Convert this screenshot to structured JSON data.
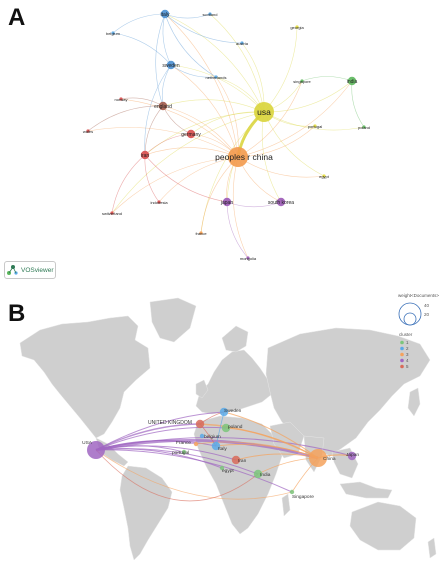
{
  "panel_a": {
    "letter": "A",
    "badge": "VOSviewer",
    "colors": {
      "green": "#5cb85c",
      "blue": "#5aa9e6",
      "yellow": "#e3dc3a",
      "purple": "#9b59b6",
      "red": "#d84b4b",
      "orange": "#f39a4c"
    },
    "nodes": [
      {
        "id": "usa",
        "label": "usa",
        "color": "#d9d43a",
        "size": "large"
      },
      {
        "id": "china",
        "label": "peoples r china",
        "color": "#f39a4c",
        "size": "large"
      },
      {
        "id": "italy",
        "label": "italy",
        "color": "#4a8fd1",
        "size": "small"
      },
      {
        "id": "scotland",
        "label": "scotland",
        "color": "#5aa9e6",
        "size": "tiny"
      },
      {
        "id": "georgia",
        "label": "georgia",
        "color": "#e3dc3a",
        "size": "tiny"
      },
      {
        "id": "belgium",
        "label": "belgium",
        "color": "#5aa9e6",
        "size": "tiny"
      },
      {
        "id": "austria",
        "label": "austria",
        "color": "#5aa9e6",
        "size": "tiny"
      },
      {
        "id": "sweden",
        "label": "sweden",
        "color": "#4a8fd1",
        "size": "small"
      },
      {
        "id": "netherlands",
        "label": "netherlands",
        "color": "#5aa9e6",
        "size": "tiny"
      },
      {
        "id": "singapore",
        "label": "singapore",
        "color": "#5cb85c",
        "size": "tiny"
      },
      {
        "id": "india",
        "label": "india",
        "color": "#5cb85c",
        "size": "small"
      },
      {
        "id": "norway",
        "label": "norway",
        "color": "#d84b4b",
        "size": "tiny"
      },
      {
        "id": "england",
        "label": "england",
        "color": "#a05a4a",
        "size": "small"
      },
      {
        "id": "wales",
        "label": "wales",
        "color": "#d84b4b",
        "size": "tiny"
      },
      {
        "id": "germany",
        "label": "germany",
        "color": "#d84b4b",
        "size": "small"
      },
      {
        "id": "portugal",
        "label": "portugal",
        "color": "#e3dc3a",
        "size": "tiny"
      },
      {
        "id": "poland",
        "label": "poland",
        "color": "#5cb85c",
        "size": "tiny"
      },
      {
        "id": "egypt",
        "label": "egypt",
        "color": "#e3dc3a",
        "size": "tiny"
      },
      {
        "id": "iran",
        "label": "iran",
        "color": "#d84b4b",
        "size": "small"
      },
      {
        "id": "indonesia",
        "label": "indonesia",
        "color": "#d84b4b",
        "size": "tiny"
      },
      {
        "id": "japan",
        "label": "japan",
        "color": "#9b59b6",
        "size": "small"
      },
      {
        "id": "southkorea",
        "label": "south korea",
        "color": "#9b59b6",
        "size": "small"
      },
      {
        "id": "switzerland",
        "label": "switzerland",
        "color": "#d84b4b",
        "size": "tiny"
      },
      {
        "id": "france",
        "label": "france",
        "color": "#f39a4c",
        "size": "tiny"
      },
      {
        "id": "mongolia",
        "label": "mongolia",
        "color": "#9b59b6",
        "size": "tiny"
      }
    ],
    "edges": [
      [
        "usa",
        "china"
      ],
      [
        "usa",
        "italy"
      ],
      [
        "usa",
        "scotland"
      ],
      [
        "usa",
        "georgia"
      ],
      [
        "usa",
        "austria"
      ],
      [
        "usa",
        "sweden"
      ],
      [
        "usa",
        "netherlands"
      ],
      [
        "usa",
        "singapore"
      ],
      [
        "usa",
        "india"
      ],
      [
        "usa",
        "england"
      ],
      [
        "usa",
        "germany"
      ],
      [
        "usa",
        "portugal"
      ],
      [
        "usa",
        "poland"
      ],
      [
        "usa",
        "egypt"
      ],
      [
        "usa",
        "iran"
      ],
      [
        "usa",
        "japan"
      ],
      [
        "usa",
        "southkorea"
      ],
      [
        "usa",
        "france"
      ],
      [
        "usa",
        "switzerland"
      ],
      [
        "china",
        "italy"
      ],
      [
        "china",
        "sweden"
      ],
      [
        "china",
        "england"
      ],
      [
        "china",
        "germany"
      ],
      [
        "china",
        "iran"
      ],
      [
        "china",
        "japan"
      ],
      [
        "china",
        "southkorea"
      ],
      [
        "china",
        "indonesia"
      ],
      [
        "china",
        "singapore"
      ],
      [
        "china",
        "india"
      ],
      [
        "china",
        "switzerland"
      ],
      [
        "china",
        "france"
      ],
      [
        "china",
        "egypt"
      ],
      [
        "china",
        "portugal"
      ],
      [
        "china",
        "mongolia"
      ],
      [
        "china",
        "norway"
      ],
      [
        "china",
        "wales"
      ],
      [
        "china",
        "netherlands"
      ],
      [
        "italy",
        "belgium"
      ],
      [
        "italy",
        "sweden"
      ],
      [
        "italy",
        "austria"
      ],
      [
        "italy",
        "netherlands"
      ],
      [
        "italy",
        "scotland"
      ],
      [
        "italy",
        "england"
      ],
      [
        "sweden",
        "england"
      ],
      [
        "sweden",
        "netherlands"
      ],
      [
        "sweden",
        "belgium"
      ],
      [
        "sweden",
        "iran"
      ],
      [
        "england",
        "germany"
      ],
      [
        "england",
        "iran"
      ],
      [
        "england",
        "norway"
      ],
      [
        "england",
        "wales"
      ],
      [
        "germany",
        "iran"
      ],
      [
        "iran",
        "indonesia"
      ],
      [
        "iran",
        "switzerland"
      ],
      [
        "iran",
        "japan"
      ],
      [
        "japan",
        "southkorea"
      ],
      [
        "japan",
        "mongolia"
      ],
      [
        "india",
        "singapore"
      ],
      [
        "india",
        "poland"
      ]
    ]
  },
  "panel_b": {
    "letter": "B",
    "legend": {
      "weight_title": "weight<Documents>",
      "weight_values": [
        "40",
        "20"
      ],
      "cluster_title": "cluster",
      "clusters": [
        {
          "label": "1",
          "color": "#7bc67b"
        },
        {
          "label": "2",
          "color": "#5aa9e6"
        },
        {
          "label": "3",
          "color": "#f5a25d"
        },
        {
          "label": "4",
          "color": "#a066c2"
        },
        {
          "label": "5",
          "color": "#d86b5a"
        }
      ]
    },
    "countries": [
      {
        "id": "usa",
        "label": "USA",
        "color": "#a066c2",
        "size": "large"
      },
      {
        "id": "uk",
        "label": "UNITED KINGDOM",
        "color": "#d86b5a",
        "size": "small"
      },
      {
        "id": "sweden",
        "label": "Sweden",
        "color": "#5aa9e6",
        "size": "small"
      },
      {
        "id": "poland",
        "label": "poland",
        "color": "#7bc67b",
        "size": "small"
      },
      {
        "id": "belgium",
        "label": "belgium",
        "color": "#5aa9e6",
        "size": "tiny"
      },
      {
        "id": "france",
        "label": "France",
        "color": "#f5a25d",
        "size": "tiny"
      },
      {
        "id": "portugal",
        "label": "portugal",
        "color": "#7bc67b",
        "size": "tiny"
      },
      {
        "id": "italy",
        "label": "Italy",
        "color": "#5aa9e6",
        "size": "small"
      },
      {
        "id": "iran",
        "label": "Iran",
        "color": "#d86b5a",
        "size": "small"
      },
      {
        "id": "egypt",
        "label": "egypt",
        "color": "#7bc67b",
        "size": "tiny"
      },
      {
        "id": "india",
        "label": "India",
        "color": "#7bc67b",
        "size": "small"
      },
      {
        "id": "china",
        "label": "China",
        "color": "#f5a25d",
        "size": "large"
      },
      {
        "id": "japan",
        "label": "Japan",
        "color": "#a066c2",
        "size": "small"
      },
      {
        "id": "singapore",
        "label": "Singapore",
        "color": "#7bc67b",
        "size": "tiny"
      }
    ]
  }
}
